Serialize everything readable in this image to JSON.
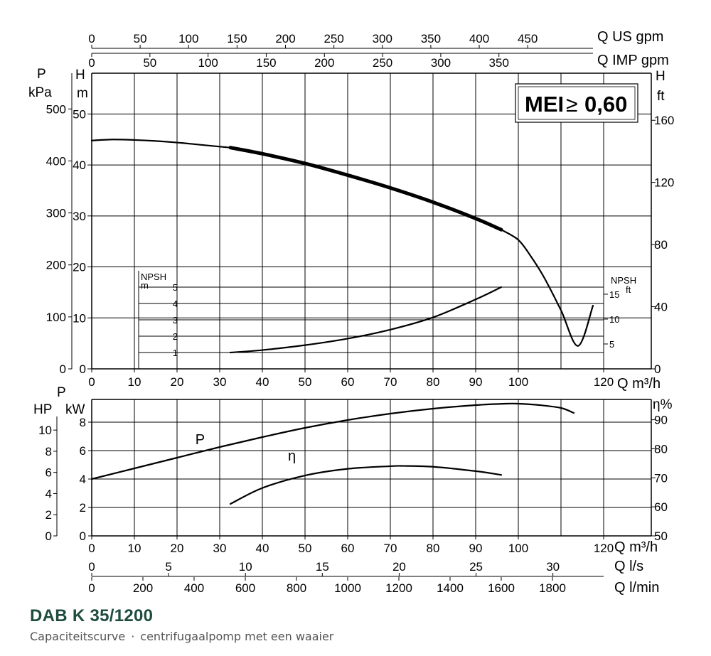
{
  "product": {
    "model": "DAB K 35/1200",
    "subtitle_parts": [
      "Capaciteitscurve",
      "·",
      "centrifugaalpomp met een waaier"
    ]
  },
  "badge": {
    "text": "MEI",
    "symbol": "≥",
    "value": "0,60"
  },
  "chart_data": [
    {
      "type": "line",
      "name": "head-capacity",
      "axes": {
        "top_us": {
          "label": "Q US gpm",
          "ticks": [
            0,
            50,
            100,
            150,
            200,
            250,
            300,
            350,
            400,
            450
          ],
          "range": [
            0,
            528.4
          ]
        },
        "top_imp": {
          "label": "Q IMP gpm",
          "ticks": [
            0,
            50,
            100,
            150,
            200,
            250,
            300,
            350
          ],
          "range": [
            0,
            440
          ]
        },
        "left_h": {
          "label_top": "H",
          "label_bottom": "m",
          "ticks": [
            0,
            10,
            20,
            30,
            40,
            50
          ],
          "range": [
            0,
            58
          ]
        },
        "left_p": {
          "label_top": "P",
          "label_bottom": "kPa",
          "ticks": [
            0,
            100,
            200,
            300,
            400,
            500
          ],
          "range": [
            0,
            568.8
          ]
        },
        "right_h": {
          "label_top": "H",
          "label_bottom": "ft",
          "ticks": [
            0,
            40,
            80,
            120,
            160
          ],
          "range": [
            0,
            190.3
          ]
        },
        "bottom": {
          "label": "Q m³/h",
          "ticks": [
            0,
            10,
            20,
            30,
            40,
            50,
            60,
            70,
            80,
            90,
            100,
            120
          ],
          "range": [
            0,
            120
          ]
        }
      },
      "grid": true,
      "series": [
        {
          "style": "thin",
          "x": [
            0,
            5,
            10,
            15,
            20,
            25,
            30,
            32.5
          ],
          "y": [
            44.8,
            45.0,
            44.9,
            44.7,
            44.4,
            44.0,
            43.6,
            43.4
          ]
        },
        {
          "style": "bold",
          "x": [
            32.5,
            40,
            50,
            60,
            70,
            80,
            90,
            96
          ],
          "y": [
            43.4,
            42.2,
            40.3,
            38.0,
            35.5,
            32.7,
            29.5,
            27.3
          ]
        },
        {
          "style": "thin",
          "x": [
            96,
            100,
            103,
            106,
            110,
            114,
            117.5
          ],
          "y": [
            27.3,
            25.3,
            22.0,
            18.0,
            11.5,
            4.5,
            12.4
          ]
        }
      ]
    },
    {
      "type": "line",
      "name": "npsh",
      "axes": {
        "left": {
          "label_top": "NPSH",
          "label_bottom": "m",
          "ticks": [
            1,
            2,
            3,
            4,
            5
          ],
          "range": [
            0,
            6
          ]
        },
        "right": {
          "label_top": "NPSH",
          "label_bottom": "ft",
          "ticks": [
            5,
            10,
            15
          ],
          "range": [
            0,
            19.7
          ]
        }
      },
      "series": [
        {
          "x": [
            32.5,
            40,
            50,
            60,
            70,
            80,
            90,
            96
          ],
          "y": [
            1.0,
            1.15,
            1.45,
            1.85,
            2.4,
            3.15,
            4.25,
            5.0
          ]
        }
      ]
    },
    {
      "type": "line",
      "name": "power-efficiency",
      "axes": {
        "left_hp": {
          "label": "HP",
          "ticks": [
            0,
            2,
            4,
            6,
            8,
            10
          ],
          "range": [
            0,
            12.9
          ]
        },
        "left_kw": {
          "label_top": "P",
          "label_bottom": "kW",
          "ticks": [
            0,
            2,
            4,
            6,
            8
          ],
          "range": [
            0,
            9.6
          ]
        },
        "right_eta": {
          "label": "η%",
          "ticks": [
            50,
            60,
            70,
            80,
            90
          ],
          "range": [
            50,
            97
          ]
        },
        "bottom": {
          "label": "Q m³/h",
          "ticks": [
            0,
            10,
            20,
            30,
            40,
            50,
            60,
            70,
            80,
            90,
            100,
            120
          ],
          "range": [
            0,
            120
          ]
        },
        "bottom_ls": {
          "label": "Q l/s",
          "ticks": [
            0,
            5,
            10,
            15,
            20,
            25,
            30
          ],
          "range": [
            0,
            33.3
          ]
        },
        "bottom_lmin": {
          "label": "Q l/min",
          "ticks": [
            0,
            200,
            400,
            600,
            800,
            1000,
            1200,
            1400,
            1600,
            1800
          ],
          "range": [
            0,
            2000
          ]
        }
      },
      "grid": true,
      "series": [
        {
          "name": "P",
          "x": [
            0,
            10,
            20,
            30,
            40,
            50,
            60,
            70,
            80,
            90,
            97,
            100,
            105,
            110,
            113
          ],
          "y": [
            4.0,
            4.75,
            5.5,
            6.25,
            6.95,
            7.6,
            8.15,
            8.6,
            8.95,
            9.2,
            9.3,
            9.3,
            9.2,
            9.0,
            8.65
          ]
        },
        {
          "name": "η",
          "x": [
            32.5,
            40,
            50,
            60,
            70,
            73,
            80,
            90,
            96
          ],
          "y": [
            61.0,
            66.5,
            70.8,
            73.1,
            74.0,
            74.1,
            73.8,
            72.3,
            71.0
          ]
        }
      ]
    }
  ]
}
